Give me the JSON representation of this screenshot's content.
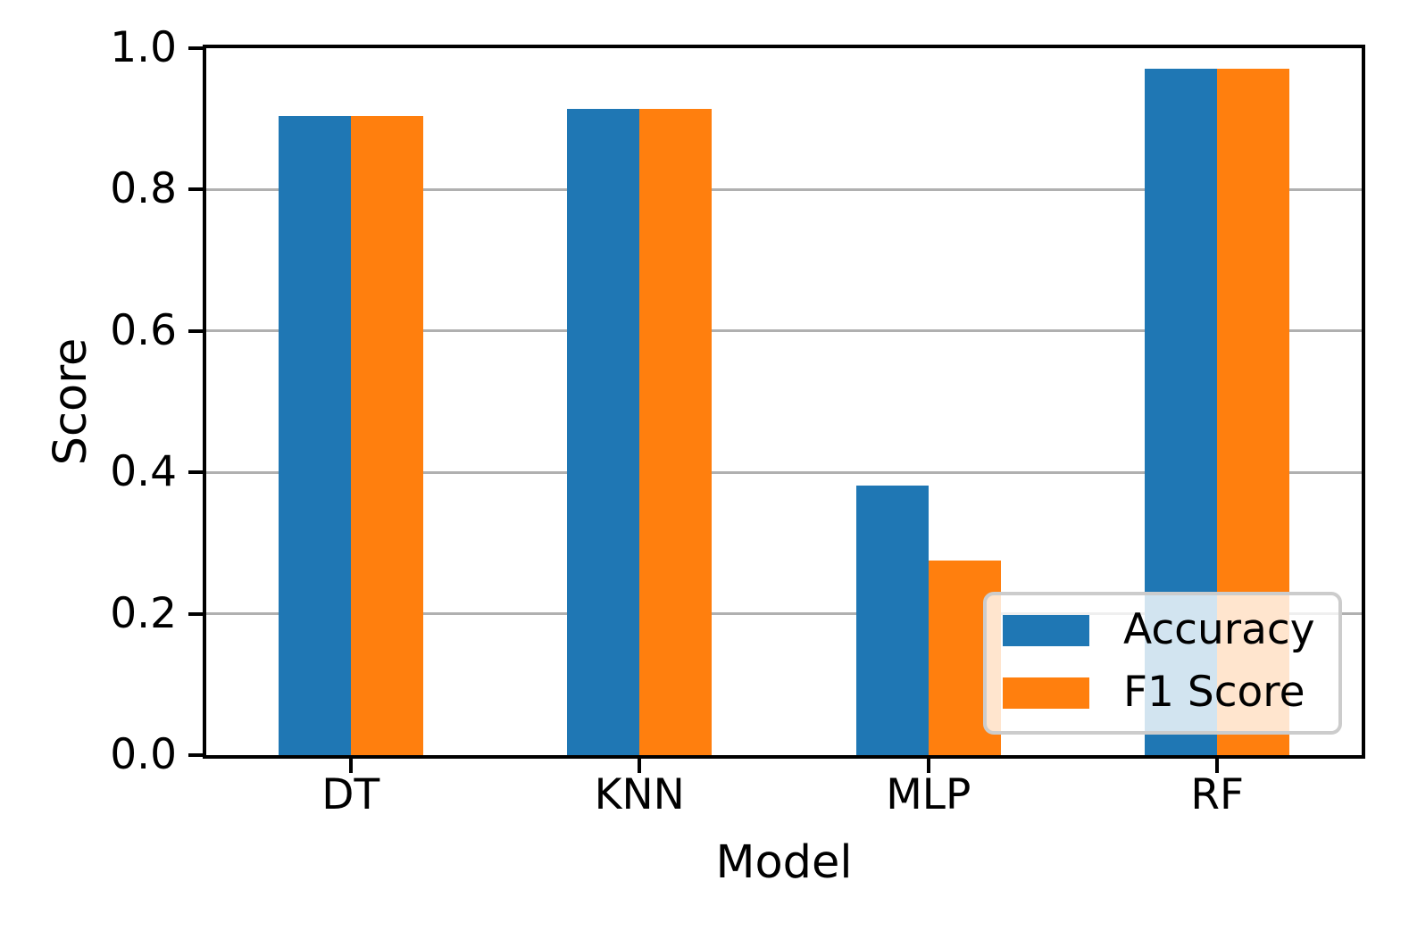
{
  "chart_data": {
    "type": "bar",
    "title": "",
    "xlabel": "Model",
    "ylabel": "Score",
    "categories": [
      "DT",
      "KNN",
      "MLP",
      "RF"
    ],
    "series": [
      {
        "name": "Accuracy",
        "color": "#1f77b4",
        "values": [
          0.904,
          0.914,
          0.381,
          0.971
        ]
      },
      {
        "name": "F1 Score",
        "color": "#ff7f0e",
        "values": [
          0.904,
          0.914,
          0.275,
          0.971
        ]
      }
    ],
    "ylim": [
      0.0,
      1.0
    ],
    "yticks": [
      0.0,
      0.2,
      0.4,
      0.6,
      0.8,
      1.0
    ],
    "ytick_labels": [
      "0.0",
      "0.2",
      "0.4",
      "0.6",
      "0.8",
      "1.0"
    ],
    "bar_width_fraction": 0.25,
    "grid": "horizontal",
    "gridline_values": [
      0.2,
      0.4,
      0.6,
      0.8
    ],
    "legend": {
      "position": "lower right",
      "entries": [
        "Accuracy",
        "F1 Score"
      ]
    },
    "colors": {
      "grid": "#b0b0b0",
      "spine": "#000000",
      "legend_border": "#cccccc",
      "legend_background": "rgba(255,255,255,0.8)"
    }
  }
}
